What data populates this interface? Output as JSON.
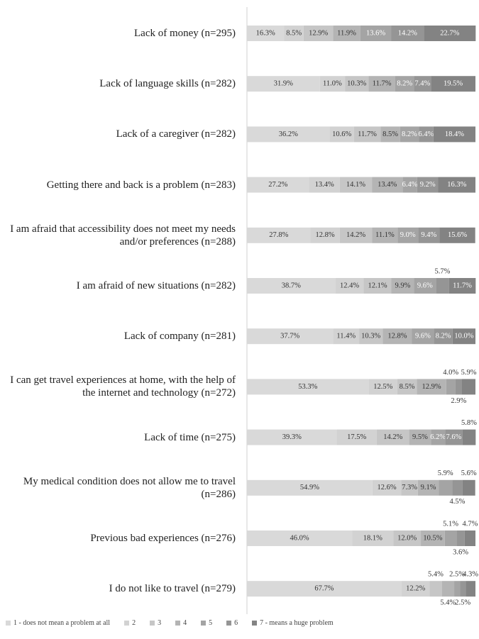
{
  "chart_data": {
    "type": "stacked_bar_horizontal",
    "categories": [
      "Lack of money (n=295)",
      "Lack of language skills (n=282)",
      "Lack of a caregiver (n=282)",
      "Getting there and back is a problem (n=283)",
      "I am afraid that accessibility does not meet my needs and/or preferences (n=288)",
      "I am afraid of new situations (n=282)",
      "Lack of company (n=281)",
      "I can get travel experiences at home, with the help of the internet and technology (n=272)",
      "Lack of time (n=275)",
      "My medical condition does not allow me to travel (n=286)",
      "Previous bad experiences (n=276)",
      "I do not like to travel (n=279)"
    ],
    "xlim": [
      0,
      100
    ],
    "series": [
      {
        "name": "1 - does not mean a problem at all",
        "color": "#d9d9d9",
        "values": [
          16.3,
          31.9,
          36.2,
          27.2,
          27.8,
          38.7,
          37.7,
          53.3,
          39.3,
          54.9,
          46.0,
          67.7
        ],
        "value_labels": [
          "16.3%",
          "31.9%",
          "36.2%",
          "27.2%",
          "27.8%",
          "38.7%",
          "37.7%",
          "53.3%",
          "39.3%",
          "54.9%",
          "46.0%",
          "67.7%"
        ]
      },
      {
        "name": "2",
        "color": "#d2d2d2",
        "values": [
          8.5,
          11.0,
          10.6,
          13.4,
          12.8,
          12.4,
          11.4,
          12.5,
          17.5,
          12.6,
          18.1,
          12.2
        ],
        "value_labels": [
          "8.5%",
          "11.0%",
          "10.6%",
          "13.4%",
          "12.8%",
          "12.4%",
          "11.4%",
          "12.5%",
          "17.5%",
          "12.6%",
          "18.1%",
          "12.2%"
        ]
      },
      {
        "name": "3",
        "color": "#c6c6c6",
        "values": [
          12.9,
          10.3,
          11.7,
          14.1,
          14.2,
          12.1,
          10.3,
          8.5,
          14.2,
          7.3,
          12.0,
          5.4
        ],
        "value_labels": [
          "12.9%",
          "10.3%",
          "11.7%",
          "14.1%",
          "14.2%",
          "12.1%",
          "10.3%",
          "8.5%",
          "14.2%",
          "7.3%",
          "12.0%",
          "5.4%"
        ]
      },
      {
        "name": "4",
        "color": "#b4b4b4",
        "values": [
          11.9,
          11.7,
          8.5,
          13.4,
          11.1,
          9.9,
          12.8,
          12.9,
          9.5,
          9.1,
          10.5,
          5.4
        ],
        "value_labels": [
          "11.9%",
          "11.7%",
          "8.5%",
          "13.4%",
          "11.1%",
          "9.9%",
          "12.8%",
          "12.9%",
          "9.5%",
          "9.1%",
          "10.5%",
          "5.4%"
        ]
      },
      {
        "name": "5",
        "color": "#a4a4a4",
        "values": [
          13.6,
          8.2,
          8.2,
          6.4,
          9.0,
          9.6,
          9.6,
          4.0,
          6.2,
          5.9,
          5.1,
          2.5
        ],
        "value_labels": [
          "13.6%",
          "8.2%",
          "8.2%",
          "6.4%",
          "9.0%",
          "9.6%",
          "9.6%",
          "4.0%",
          "6.2%",
          "5.9%",
          "5.1%",
          "2.5%"
        ]
      },
      {
        "name": "6",
        "color": "#959595",
        "values": [
          14.2,
          7.4,
          6.4,
          9.2,
          9.4,
          5.7,
          8.2,
          2.9,
          7.6,
          4.5,
          3.6,
          2.5
        ],
        "value_labels": [
          "14.2%",
          "7.4%",
          "6.4%",
          "9.2%",
          "9.4%",
          "5.7%",
          "8.2%",
          "2.9%",
          "7.6%",
          "4.5%",
          "3.6%",
          "2.5%"
        ]
      },
      {
        "name": "7 - means a huge problem",
        "color": "#838383",
        "values": [
          22.7,
          19.5,
          18.4,
          16.3,
          15.6,
          11.7,
          10.0,
          5.9,
          5.8,
          5.6,
          4.7,
          4.3
        ],
        "value_labels": [
          "22.7%",
          "19.5%",
          "18.4%",
          "16.3%",
          "15.6%",
          "11.7%",
          "10.0%",
          "5.9%",
          "5.8%",
          "5.6%",
          "4.7%",
          "4.3%"
        ]
      }
    ]
  }
}
